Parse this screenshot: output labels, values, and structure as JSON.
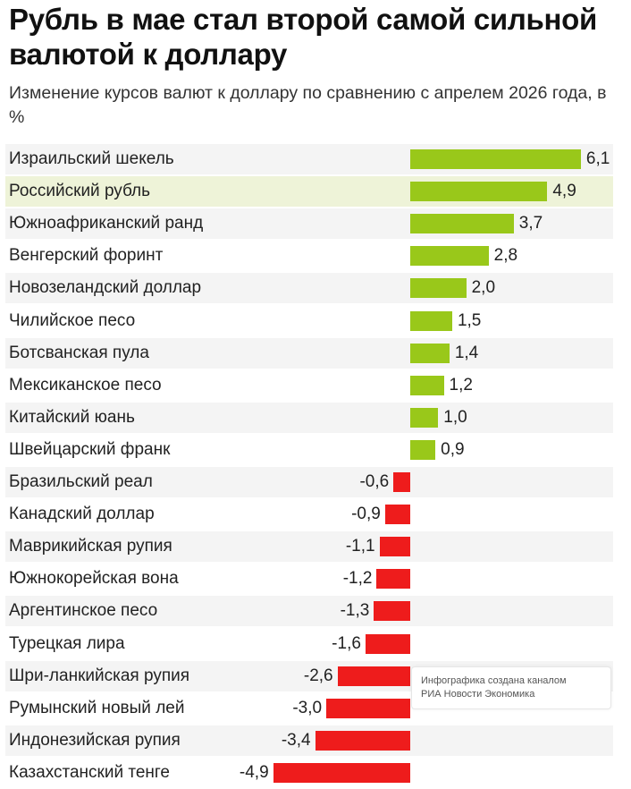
{
  "title": "Рубль в мае стал второй самой сильной валютой к доллару",
  "subtitle": "Изменение курсов валют к доллару по сравнению с апрелем 2026 года, в %",
  "credit": {
    "line1": "Инфографика создана каналом",
    "line2": "РИА Новости Экономика"
  },
  "colors": {
    "positive": "#99c81a",
    "negative": "#ee1c1c",
    "row_alt": "#f4f4f4",
    "highlight": "#eef3d8"
  },
  "chart_data": {
    "type": "bar",
    "orientation": "horizontal",
    "highlighted_category": "Российский рубль",
    "categories": [
      "Израильский шекель",
      "Российский рубль",
      "Южноафриканский ранд",
      "Венгерский форинт",
      "Новозеландский доллар",
      "Чилийское песо",
      "Ботсванская пула",
      "Мексиканское песо",
      "Китайский юань",
      "Швейцарский франк",
      "Бразильский реал",
      "Канадский доллар",
      "Маврикийская рупия",
      "Южнокорейская вона",
      "Аргентинское песо",
      "Турецкая лира",
      "Шри-ланкийская рупия",
      "Румынский новый лей",
      "Индонезийская рупия",
      "Казахстанский тенге"
    ],
    "values": [
      6.1,
      4.9,
      3.7,
      2.8,
      2.0,
      1.5,
      1.4,
      1.2,
      1.0,
      0.9,
      -0.6,
      -0.9,
      -1.1,
      -1.2,
      -1.3,
      -1.6,
      -2.6,
      -3.0,
      -3.4,
      -4.9
    ],
    "value_labels": [
      "6,1",
      "4,9",
      "3,7",
      "2,8",
      "2,0",
      "1,5",
      "1,4",
      "1,2",
      "1,0",
      "0,9",
      "-0,6",
      "-0,9",
      "-1,1",
      "-1,2",
      "-1,3",
      "-1,6",
      "-2,6",
      "-3,0",
      "-3,4",
      "-4,9"
    ],
    "xlim": [
      -4.9,
      6.1
    ],
    "grid": false,
    "legend": "none"
  }
}
